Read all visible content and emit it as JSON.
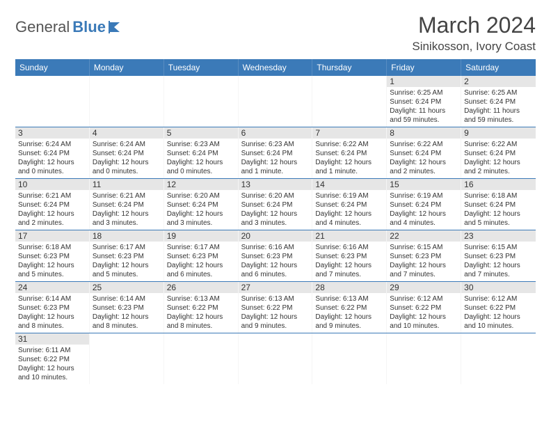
{
  "logo": {
    "part1": "General",
    "part2": "Blue"
  },
  "title": "March 2024",
  "location": "Sinikosson, Ivory Coast",
  "colors": {
    "header_bg": "#3b7ab8",
    "header_text": "#ffffff",
    "daynum_bg": "#e6e6e6",
    "row_border": "#3b7ab8",
    "text": "#333333",
    "logo_gray": "#555555",
    "logo_blue": "#3b7ab8",
    "background": "#ffffff"
  },
  "typography": {
    "title_fontsize": 32,
    "location_fontsize": 17,
    "header_fontsize": 12,
    "daynum_fontsize": 12,
    "body_fontsize": 10
  },
  "dayHeaders": [
    "Sunday",
    "Monday",
    "Tuesday",
    "Wednesday",
    "Thursday",
    "Friday",
    "Saturday"
  ],
  "weeks": [
    [
      null,
      null,
      null,
      null,
      null,
      {
        "n": "1",
        "sunrise": "6:25 AM",
        "sunset": "6:24 PM",
        "dl1": "Daylight: 11 hours",
        "dl2": "and 59 minutes."
      },
      {
        "n": "2",
        "sunrise": "6:25 AM",
        "sunset": "6:24 PM",
        "dl1": "Daylight: 11 hours",
        "dl2": "and 59 minutes."
      }
    ],
    [
      {
        "n": "3",
        "sunrise": "6:24 AM",
        "sunset": "6:24 PM",
        "dl1": "Daylight: 12 hours",
        "dl2": "and 0 minutes."
      },
      {
        "n": "4",
        "sunrise": "6:24 AM",
        "sunset": "6:24 PM",
        "dl1": "Daylight: 12 hours",
        "dl2": "and 0 minutes."
      },
      {
        "n": "5",
        "sunrise": "6:23 AM",
        "sunset": "6:24 PM",
        "dl1": "Daylight: 12 hours",
        "dl2": "and 0 minutes."
      },
      {
        "n": "6",
        "sunrise": "6:23 AM",
        "sunset": "6:24 PM",
        "dl1": "Daylight: 12 hours",
        "dl2": "and 1 minute."
      },
      {
        "n": "7",
        "sunrise": "6:22 AM",
        "sunset": "6:24 PM",
        "dl1": "Daylight: 12 hours",
        "dl2": "and 1 minute."
      },
      {
        "n": "8",
        "sunrise": "6:22 AM",
        "sunset": "6:24 PM",
        "dl1": "Daylight: 12 hours",
        "dl2": "and 2 minutes."
      },
      {
        "n": "9",
        "sunrise": "6:22 AM",
        "sunset": "6:24 PM",
        "dl1": "Daylight: 12 hours",
        "dl2": "and 2 minutes."
      }
    ],
    [
      {
        "n": "10",
        "sunrise": "6:21 AM",
        "sunset": "6:24 PM",
        "dl1": "Daylight: 12 hours",
        "dl2": "and 2 minutes."
      },
      {
        "n": "11",
        "sunrise": "6:21 AM",
        "sunset": "6:24 PM",
        "dl1": "Daylight: 12 hours",
        "dl2": "and 3 minutes."
      },
      {
        "n": "12",
        "sunrise": "6:20 AM",
        "sunset": "6:24 PM",
        "dl1": "Daylight: 12 hours",
        "dl2": "and 3 minutes."
      },
      {
        "n": "13",
        "sunrise": "6:20 AM",
        "sunset": "6:24 PM",
        "dl1": "Daylight: 12 hours",
        "dl2": "and 3 minutes."
      },
      {
        "n": "14",
        "sunrise": "6:19 AM",
        "sunset": "6:24 PM",
        "dl1": "Daylight: 12 hours",
        "dl2": "and 4 minutes."
      },
      {
        "n": "15",
        "sunrise": "6:19 AM",
        "sunset": "6:24 PM",
        "dl1": "Daylight: 12 hours",
        "dl2": "and 4 minutes."
      },
      {
        "n": "16",
        "sunrise": "6:18 AM",
        "sunset": "6:24 PM",
        "dl1": "Daylight: 12 hours",
        "dl2": "and 5 minutes."
      }
    ],
    [
      {
        "n": "17",
        "sunrise": "6:18 AM",
        "sunset": "6:23 PM",
        "dl1": "Daylight: 12 hours",
        "dl2": "and 5 minutes."
      },
      {
        "n": "18",
        "sunrise": "6:17 AM",
        "sunset": "6:23 PM",
        "dl1": "Daylight: 12 hours",
        "dl2": "and 5 minutes."
      },
      {
        "n": "19",
        "sunrise": "6:17 AM",
        "sunset": "6:23 PM",
        "dl1": "Daylight: 12 hours",
        "dl2": "and 6 minutes."
      },
      {
        "n": "20",
        "sunrise": "6:16 AM",
        "sunset": "6:23 PM",
        "dl1": "Daylight: 12 hours",
        "dl2": "and 6 minutes."
      },
      {
        "n": "21",
        "sunrise": "6:16 AM",
        "sunset": "6:23 PM",
        "dl1": "Daylight: 12 hours",
        "dl2": "and 7 minutes."
      },
      {
        "n": "22",
        "sunrise": "6:15 AM",
        "sunset": "6:23 PM",
        "dl1": "Daylight: 12 hours",
        "dl2": "and 7 minutes."
      },
      {
        "n": "23",
        "sunrise": "6:15 AM",
        "sunset": "6:23 PM",
        "dl1": "Daylight: 12 hours",
        "dl2": "and 7 minutes."
      }
    ],
    [
      {
        "n": "24",
        "sunrise": "6:14 AM",
        "sunset": "6:23 PM",
        "dl1": "Daylight: 12 hours",
        "dl2": "and 8 minutes."
      },
      {
        "n": "25",
        "sunrise": "6:14 AM",
        "sunset": "6:23 PM",
        "dl1": "Daylight: 12 hours",
        "dl2": "and 8 minutes."
      },
      {
        "n": "26",
        "sunrise": "6:13 AM",
        "sunset": "6:22 PM",
        "dl1": "Daylight: 12 hours",
        "dl2": "and 8 minutes."
      },
      {
        "n": "27",
        "sunrise": "6:13 AM",
        "sunset": "6:22 PM",
        "dl1": "Daylight: 12 hours",
        "dl2": "and 9 minutes."
      },
      {
        "n": "28",
        "sunrise": "6:13 AM",
        "sunset": "6:22 PM",
        "dl1": "Daylight: 12 hours",
        "dl2": "and 9 minutes."
      },
      {
        "n": "29",
        "sunrise": "6:12 AM",
        "sunset": "6:22 PM",
        "dl1": "Daylight: 12 hours",
        "dl2": "and 10 minutes."
      },
      {
        "n": "30",
        "sunrise": "6:12 AM",
        "sunset": "6:22 PM",
        "dl1": "Daylight: 12 hours",
        "dl2": "and 10 minutes."
      }
    ],
    [
      {
        "n": "31",
        "sunrise": "6:11 AM",
        "sunset": "6:22 PM",
        "dl1": "Daylight: 12 hours",
        "dl2": "and 10 minutes."
      },
      null,
      null,
      null,
      null,
      null,
      null
    ]
  ]
}
